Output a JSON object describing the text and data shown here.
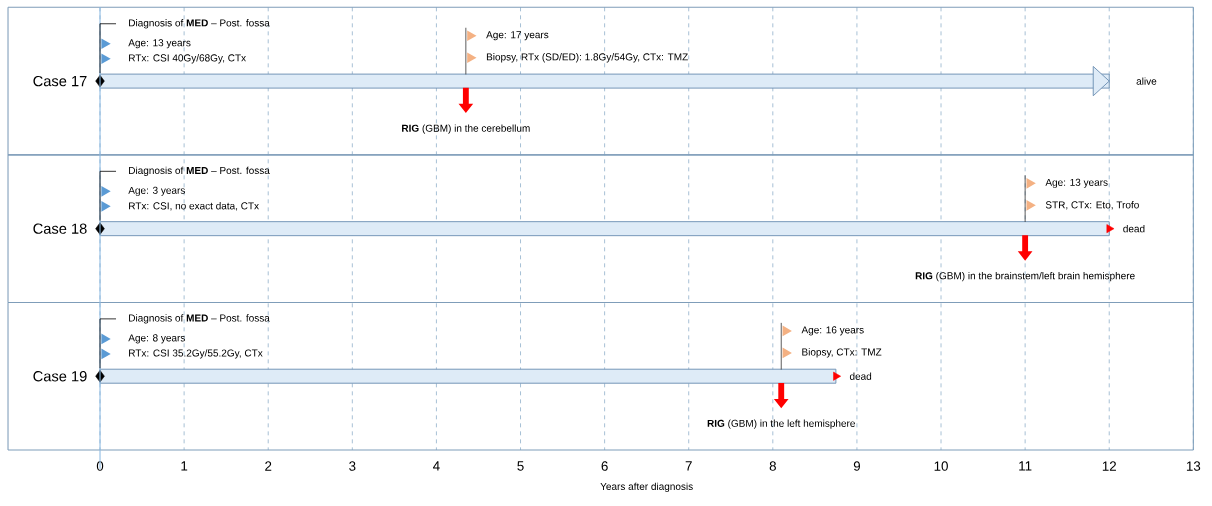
{
  "chart_data": {
    "type": "bar",
    "orientation": "horizontal",
    "xlabel": "Years after diagnosis",
    "categories": [
      "Case 17",
      "Case 18",
      "Case 19"
    ],
    "series": [
      {
        "type": "bar",
        "color": "#deebf7",
        "values": [
          12,
          12,
          8.75
        ]
      },
      {
        "type": "scatter",
        "color": "#000000",
        "marker": "diamond",
        "x": [
          "Case 17",
          "Case 18",
          "Case 19"
        ],
        "values": [
          0,
          0,
          0
        ]
      },
      {
        "type": "scatter",
        "color": "#ff0000",
        "marker": "triangle",
        "x": [
          "Case 17",
          "Case 18",
          "Case 19"
        ],
        "values": [
          4.35,
          11,
          8.1
        ]
      },
      {
        "type": "scatter",
        "color": "#ff0000",
        "marker": "triangle",
        "x": [
          "Case 18",
          "Case 19"
        ],
        "values": [
          12,
          8.75
        ]
      }
    ],
    "xlim": [
      0,
      13
    ],
    "xticks": [
      0,
      1,
      2,
      3,
      4,
      5,
      6,
      7,
      8,
      9,
      10,
      11,
      12,
      13
    ],
    "grid": "x",
    "annotations": [
      "Diagnosis of **MED** – Post. fossa",
      "Age: 13 years",
      "RTx: CSI 40Gy/68Gy, CTx",
      "Age: 17 years",
      "Biopsy, RTx (SD/ED): 1.8Gy/54Gy, CTx: TMZ",
      "**RIG** (GBM) in the cerebellum",
      "alive",
      "Diagnosis of **MED** – Post. fossa",
      "Age: 3 years",
      "RTx: CSI,  no exact data, CTx",
      "Age: 13 years",
      "STR, CTx: Eto, Trofo",
      "**RIG** (GBM) in the brainstem/left brain hemisphere",
      "dead",
      "Diagnosis of **MED** – Post. fossa",
      "Age: 8 years",
      "RTx: CSI 35.2Gy/55.2Gy, CTx",
      "Age: 16 years",
      "Biopsy, CTx: TMZ",
      "**RIG** (GBM) in the left hemisphere",
      "dead"
    ]
  }
}
